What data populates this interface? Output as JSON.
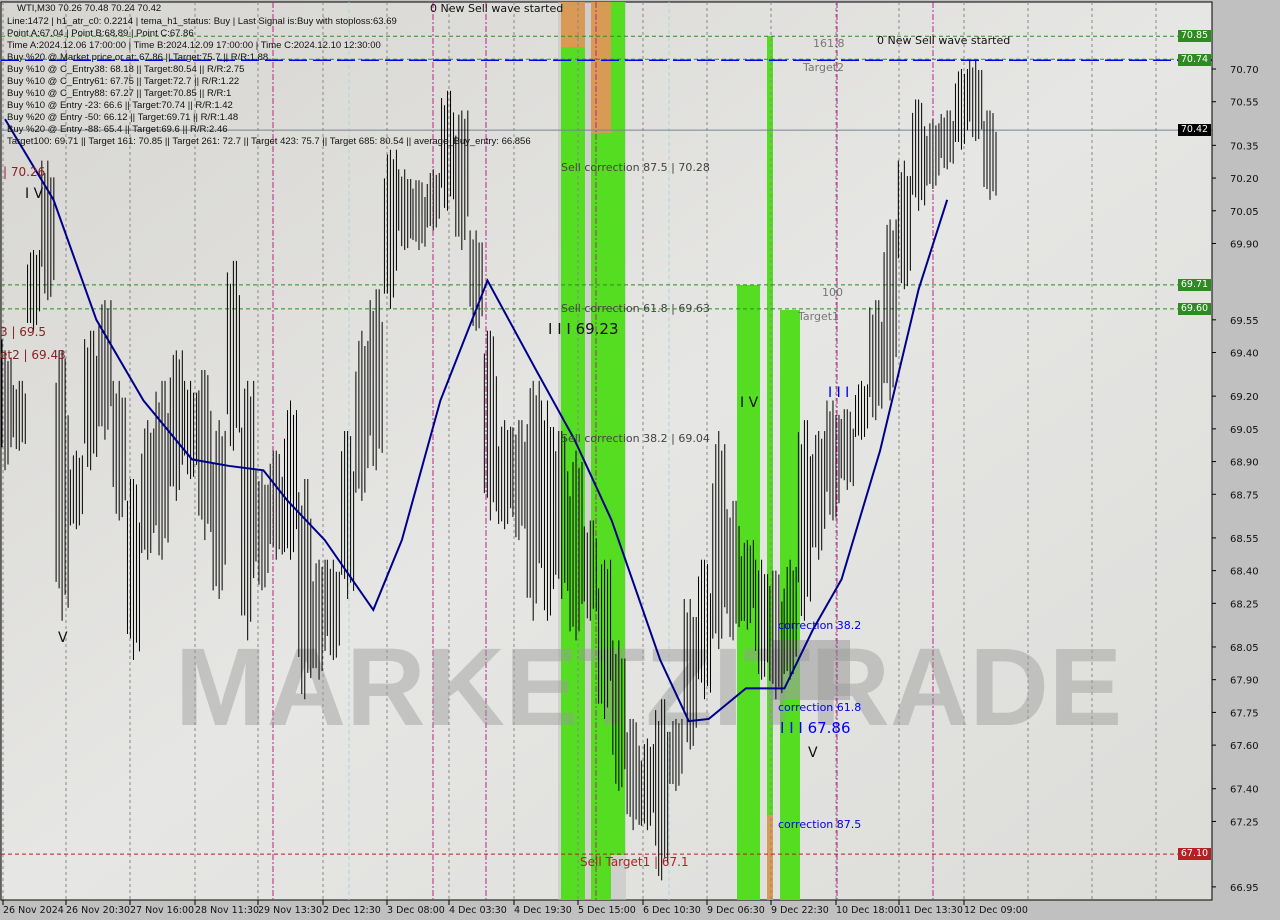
{
  "header": {
    "title_line": "WTI,M30  70.26 70.48 70.24 70.42",
    "lines": [
      "Line:1472 | h1_atr_c0: 0.2214 | tema_h1_status: Buy | Last Signal is:Buy with stoploss:63.69",
      "Point A:67.04 | Point B:68.89 | Point C:67.86",
      "Time A:2024.12.06 17:00:00 | Time B:2024.12.09 17:00:00 | Time C:2024.12.10 12:30:00",
      "Buy %20 @ Market price or at: 67.86 || Target:75.7 || R/R:1.88",
      "Buy %10 @ C_Entry38: 68.18 || Target:80.54 || R/R:2.75",
      "Buy %10 @ C_Entry61: 67.75 || Target:72.7 || R/R:1.22",
      "Buy %10 @ C_Entry88: 67.27 || Target:70.85 || R/R:1",
      "Buy %10 @ Entry -23: 66.6 || Target:70.74 || R/R:1.42",
      "Buy %20 @ Entry -50: 66.12 || Target:69.71 || R/R:1.48",
      "Buy %20 @ Entry -88: 65.4 || Target:69.6 || R/R:2.46",
      "Target100: 69.71 || Target 161: 70.85 || Target 261: 72.7 || Target 423: 75.7 || Target 685: 80.54 || average_Buy_entry: 66.856"
    ]
  },
  "annotations": {
    "new_sell_1": "0 New Sell wave started",
    "new_sell_2": "0 New Sell wave started",
    "fib_1618": "161.8",
    "target2": "Target2",
    "fib_100": "100",
    "target1": "Target1",
    "sell_corr_875": "Sell correction 87.5 | 70.28",
    "sell_corr_618": "Sell correction 61.8 | 69.63",
    "wave_iii_high": "I I I 69.23",
    "sell_corr_382": "Sell correction 38.2 | 69.04",
    "wave_iv": "I V",
    "wave_iii_b": "I I I",
    "corr_382": "correction 38.2",
    "corr_618": "correction 61.8",
    "wave_iii_low": "I I I 67.86",
    "corr_875": "correction 87.5",
    "sell_target1": "Sell Target1 | 67.1",
    "wave_v_1": "V",
    "wave_v_2": "V",
    "left_7026": "| 70.26",
    "left_iv": "I V",
    "left_6955": "3 | 69.5",
    "left_6943": "et2 | 69.43",
    "watermark": "MARKETZITRADE"
  },
  "colors": {
    "background": "#dcdcd8",
    "bars": "#000000",
    "ma_line": "#00008b",
    "green_zone": "#55dd22",
    "orange_zone": "#d99a55",
    "level_green": "#2e8b22",
    "level_blue": "#0000ff",
    "level_red": "#b22222"
  },
  "chart_data": {
    "type": "bar",
    "symbol": "WTI",
    "timeframe": "M30",
    "ylim": [
      66.9,
      70.94
    ],
    "y_ticks": [
      "70.70",
      "70.55",
      "70.35",
      "70.20",
      "70.05",
      "69.90",
      "69.55",
      "69.40",
      "69.20",
      "69.05",
      "68.90",
      "68.75",
      "68.55",
      "68.40",
      "68.25",
      "68.05",
      "67.90",
      "67.75",
      "67.60",
      "67.40",
      "67.25",
      "66.95"
    ],
    "x_ticks": [
      "26 Nov 2024",
      "26 Nov 20:30",
      "27 Nov 16:00",
      "28 Nov 11:30",
      "29 Nov 13:30",
      "2 Dec 12:30",
      "3 Dec 08:00",
      "4 Dec 03:30",
      "4 Dec 19:30",
      "5 Dec 15:00",
      "6 Dec 10:30",
      "9 Dec 06:30",
      "9 Dec 22:30",
      "10 Dec 18:00",
      "11 Dec 13:30",
      "12 Dec 09:00"
    ],
    "price_bars_high_low": [
      [
        69.41,
        68.86
      ],
      [
        69.27,
        68.95
      ],
      [
        69.87,
        69.5
      ],
      [
        70.28,
        69.64
      ],
      [
        69.41,
        68.17
      ],
      [
        68.95,
        68.59
      ],
      [
        69.5,
        68.86
      ],
      [
        69.64,
        69.0
      ],
      [
        69.27,
        68.63
      ],
      [
        68.82,
        67.99
      ],
      [
        69.09,
        68.45
      ],
      [
        69.27,
        68.45
      ],
      [
        69.41,
        68.72
      ],
      [
        69.27,
        68.82
      ],
      [
        69.32,
        68.54
      ],
      [
        69.09,
        68.27
      ],
      [
        69.82,
        68.95
      ],
      [
        69.27,
        68.08
      ],
      [
        68.86,
        68.31
      ],
      [
        68.95,
        68.45
      ],
      [
        69.18,
        68.45
      ],
      [
        68.82,
        67.81
      ],
      [
        68.45,
        67.9
      ],
      [
        68.45,
        67.99
      ],
      [
        69.04,
        68.27
      ],
      [
        69.5,
        68.72
      ],
      [
        69.69,
        68.86
      ],
      [
        70.33,
        69.6
      ],
      [
        70.24,
        69.87
      ],
      [
        70.19,
        69.87
      ],
      [
        70.24,
        69.96
      ],
      [
        70.6,
        70.05
      ],
      [
        70.51,
        69.87
      ],
      [
        69.96,
        69.5
      ],
      [
        69.5,
        68.63
      ],
      [
        69.09,
        68.59
      ],
      [
        69.09,
        68.54
      ],
      [
        69.27,
        68.17
      ],
      [
        69.18,
        68.17
      ],
      [
        69.04,
        68.27
      ],
      [
        68.95,
        68.08
      ],
      [
        68.63,
        68.17
      ],
      [
        68.45,
        67.72
      ],
      [
        68.08,
        67.39
      ],
      [
        67.72,
        67.21
      ],
      [
        67.63,
        67.21
      ],
      [
        67.81,
        66.98
      ],
      [
        67.72,
        67.39
      ],
      [
        68.27,
        67.58
      ],
      [
        68.45,
        67.81
      ],
      [
        69.04,
        68.04
      ],
      [
        68.72,
        68.08
      ],
      [
        68.54,
        68.13
      ],
      [
        68.45,
        67.9
      ],
      [
        68.4,
        67.81
      ],
      [
        68.45,
        67.9
      ],
      [
        69.09,
        68.17
      ],
      [
        69.04,
        68.45
      ],
      [
        69.18,
        68.63
      ],
      [
        69.14,
        68.77
      ],
      [
        69.27,
        69.0
      ],
      [
        69.64,
        69.09
      ],
      [
        70.01,
        69.18
      ],
      [
        70.28,
        69.69
      ],
      [
        70.56,
        70.05
      ],
      [
        70.47,
        70.15
      ],
      [
        70.51,
        70.24
      ],
      [
        70.7,
        70.33
      ],
      [
        70.74,
        70.37
      ],
      [
        70.51,
        70.1
      ]
    ],
    "moving_average": [
      [
        0,
        70.47
      ],
      [
        3.4,
        70.1
      ],
      [
        6.4,
        69.55
      ],
      [
        9.7,
        69.18
      ],
      [
        13.1,
        68.91
      ],
      [
        15.7,
        68.88
      ],
      [
        18.1,
        68.86
      ],
      [
        19.8,
        68.72
      ],
      [
        22.4,
        68.54
      ],
      [
        25.8,
        68.22
      ],
      [
        27.8,
        68.54
      ],
      [
        30.5,
        69.18
      ],
      [
        33.8,
        69.73
      ],
      [
        37.2,
        69.32
      ],
      [
        39.9,
        69.0
      ],
      [
        42.5,
        68.63
      ],
      [
        45.9,
        67.99
      ],
      [
        47.9,
        67.71
      ],
      [
        49.3,
        67.72
      ],
      [
        51.9,
        67.86
      ],
      [
        54.6,
        67.86
      ],
      [
        56.6,
        68.13
      ],
      [
        58.6,
        68.36
      ],
      [
        61.3,
        68.95
      ],
      [
        64.0,
        69.69
      ],
      [
        66.0,
        70.1
      ]
    ],
    "levels": [
      {
        "price": 70.85,
        "label": "70.85",
        "color": "#2e8b22",
        "style": "dashed"
      },
      {
        "price": 70.74,
        "label": "70.74",
        "color": "#2e8b22",
        "style": "dashed-blue"
      },
      {
        "price": 70.42,
        "label": "70.42",
        "color": "#000000",
        "style": "solid"
      },
      {
        "price": 69.71,
        "label": "69.71",
        "color": "#2e8b22",
        "style": "dashed"
      },
      {
        "price": 69.6,
        "label": "69.60",
        "color": "#2e8b22",
        "style": "dashed"
      },
      {
        "price": 67.1,
        "label": "67.10",
        "color": "#b22222",
        "style": "dashed"
      }
    ],
    "current_price": 70.42
  }
}
